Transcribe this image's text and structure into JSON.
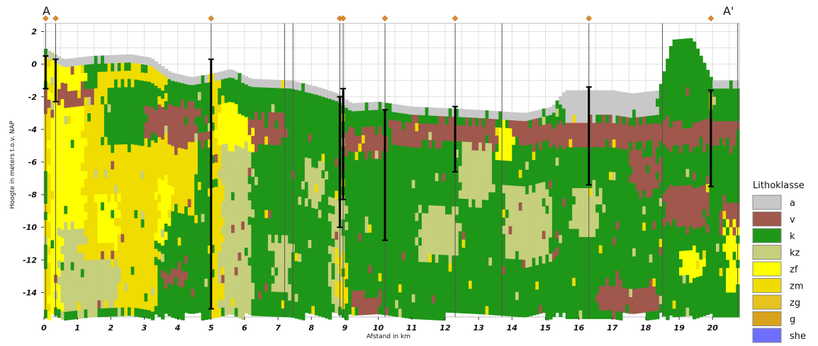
{
  "chart_data": {
    "type": "heatmap",
    "title": "",
    "section_labels": [
      "A",
      "A'"
    ],
    "xlabel": "Afstand in km",
    "ylabel": "Hoogte in meters t.o.v. NAP",
    "xlim": [
      0,
      20.8
    ],
    "ylim": [
      -15.5,
      2.5
    ],
    "x_ticks": [
      0,
      1,
      2,
      3,
      4,
      5,
      6,
      7,
      8,
      9,
      10,
      11,
      12,
      13,
      14,
      15,
      16,
      17,
      18,
      19,
      20
    ],
    "y_ticks": [
      2,
      0,
      -2,
      -4,
      -6,
      -8,
      -10,
      -12,
      -14
    ],
    "grid": true,
    "legend_title": "Lithoklasse",
    "legend_position": "right",
    "classes": [
      {
        "code": "a",
        "color": "#c8c8c8"
      },
      {
        "code": "v",
        "color": "#a0574c"
      },
      {
        "code": "k",
        "color": "#1e9618"
      },
      {
        "code": "kz",
        "color": "#c6cf7c"
      },
      {
        "code": "zf",
        "color": "#ffff00"
      },
      {
        "code": "zm",
        "color": "#f0dc00"
      },
      {
        "code": "zg",
        "color": "#e6c31e"
      },
      {
        "code": "g",
        "color": "#d9a21c"
      },
      {
        "code": "she",
        "color": "#6f6fff"
      }
    ],
    "cell_width_km": 0.1,
    "cell_height_m": 0.5,
    "surface": [
      {
        "x": 0.0,
        "z": 1.0
      },
      {
        "x": 0.6,
        "z": 0.3
      },
      {
        "x": 1.4,
        "z": 0.5
      },
      {
        "x": 2.6,
        "z": 0.6
      },
      {
        "x": 3.2,
        "z": 0.4
      },
      {
        "x": 3.8,
        "z": -0.5
      },
      {
        "x": 4.4,
        "z": -0.8
      },
      {
        "x": 5.0,
        "z": -0.6
      },
      {
        "x": 5.6,
        "z": -0.3
      },
      {
        "x": 6.2,
        "z": -0.9
      },
      {
        "x": 7.4,
        "z": -1.0
      },
      {
        "x": 8.2,
        "z": -1.4
      },
      {
        "x": 8.8,
        "z": -1.8
      },
      {
        "x": 9.2,
        "z": -2.4
      },
      {
        "x": 10.0,
        "z": -2.3
      },
      {
        "x": 11.0,
        "z": -2.6
      },
      {
        "x": 13.0,
        "z": -2.8
      },
      {
        "x": 14.4,
        "z": -3.0
      },
      {
        "x": 15.2,
        "z": -2.6
      },
      {
        "x": 15.6,
        "z": -1.6
      },
      {
        "x": 17.0,
        "z": -1.6
      },
      {
        "x": 17.6,
        "z": -1.8
      },
      {
        "x": 18.4,
        "z": -1.6
      },
      {
        "x": 18.8,
        "z": 1.5
      },
      {
        "x": 19.4,
        "z": 1.6
      },
      {
        "x": 20.0,
        "z": -1.0
      },
      {
        "x": 20.8,
        "z": -1.0
      }
    ],
    "base_depth": -15.2,
    "zones": [
      {
        "x0": 0.0,
        "x1": 0.2,
        "z0": 0.5,
        "z1": -15.2,
        "class": "zm"
      },
      {
        "x0": 0.0,
        "x1": 0.3,
        "z0": -1.5,
        "z1": -3.5,
        "class": "v"
      },
      {
        "x0": 0.2,
        "x1": 1.2,
        "z0": 0.2,
        "z1": -15.2,
        "class": "zf"
      },
      {
        "x0": 0.4,
        "x1": 1.6,
        "z0": -1.5,
        "z1": -2.5,
        "class": "v"
      },
      {
        "x0": 0.5,
        "x1": 2.2,
        "z0": -10.0,
        "z1": -15.2,
        "class": "kz"
      },
      {
        "x0": 1.2,
        "x1": 4.6,
        "z0": -2.5,
        "z1": -12.0,
        "class": "zm"
      },
      {
        "x0": 1.6,
        "x1": 3.6,
        "z0": -0.3,
        "z1": -2.5,
        "class": "zm"
      },
      {
        "x0": 1.8,
        "x1": 3.4,
        "z0": -1.2,
        "z1": -5.0,
        "class": "k"
      },
      {
        "x0": 3.0,
        "x1": 4.6,
        "z0": -2.5,
        "z1": -4.5,
        "class": "v"
      },
      {
        "x0": 3.8,
        "x1": 5.0,
        "z0": -0.5,
        "z1": -2.5,
        "class": "k"
      },
      {
        "x0": 3.8,
        "x1": 5.0,
        "z0": -4.0,
        "z1": -5.0,
        "class": "v"
      },
      {
        "x0": 2.2,
        "x1": 3.4,
        "z0": -12.0,
        "z1": -15.2,
        "class": "zm"
      },
      {
        "x0": 3.4,
        "x1": 5.0,
        "z0": -9.0,
        "z1": -15.2,
        "class": "k"
      },
      {
        "x0": 3.4,
        "x1": 3.8,
        "z0": -7.0,
        "z1": -11.0,
        "class": "zf"
      },
      {
        "x0": 1.6,
        "x1": 2.2,
        "z0": -8.0,
        "z1": -11.0,
        "class": "zf"
      },
      {
        "x0": 3.6,
        "x1": 4.2,
        "z0": -12.5,
        "z1": -13.5,
        "class": "v"
      },
      {
        "x0": 5.0,
        "x1": 5.3,
        "z0": -0.5,
        "z1": -15.2,
        "class": "zm"
      },
      {
        "x0": 5.3,
        "x1": 5.9,
        "z0": -0.3,
        "z1": -2.5,
        "class": "k"
      },
      {
        "x0": 5.2,
        "x1": 6.2,
        "z0": -2.5,
        "z1": -5.0,
        "class": "zf"
      },
      {
        "x0": 5.3,
        "x1": 6.2,
        "z0": -5.0,
        "z1": -15.2,
        "class": "kz"
      },
      {
        "x0": 5.9,
        "x1": 7.4,
        "z0": -0.9,
        "z1": -3.0,
        "class": "k"
      },
      {
        "x0": 6.2,
        "x1": 7.2,
        "z0": -3.0,
        "z1": -5.0,
        "class": "v"
      },
      {
        "x0": 6.2,
        "x1": 7.4,
        "z0": -5.0,
        "z1": -15.2,
        "class": "k"
      },
      {
        "x0": 6.8,
        "x1": 7.4,
        "z0": -10.5,
        "z1": -14.0,
        "class": "kz"
      },
      {
        "x0": 7.4,
        "x1": 8.8,
        "z0": -1.0,
        "z1": -4.5,
        "class": "k"
      },
      {
        "x0": 7.4,
        "x1": 8.8,
        "z0": -4.5,
        "z1": -15.2,
        "class": "k"
      },
      {
        "x0": 7.8,
        "x1": 8.4,
        "z0": -6.0,
        "z1": -8.5,
        "class": "kz"
      },
      {
        "x0": 8.6,
        "x1": 9.0,
        "z0": -8.0,
        "z1": -15.2,
        "class": "kz"
      },
      {
        "x0": 8.8,
        "x1": 9.2,
        "z0": -11.5,
        "z1": -15.2,
        "class": "zm"
      },
      {
        "x0": 9.0,
        "x1": 10.2,
        "z0": -2.4,
        "z1": -4.0,
        "class": "k"
      },
      {
        "x0": 9.0,
        "x1": 10.2,
        "z0": -4.0,
        "z1": -5.5,
        "class": "v"
      },
      {
        "x0": 9.0,
        "x1": 10.4,
        "z0": -5.5,
        "z1": -15.2,
        "class": "k"
      },
      {
        "x0": 9.2,
        "x1": 10.0,
        "z0": -14.0,
        "z1": -15.2,
        "class": "v"
      },
      {
        "x0": 10.2,
        "x1": 11.8,
        "z0": -2.4,
        "z1": -3.5,
        "class": "k"
      },
      {
        "x0": 10.4,
        "x1": 12.4,
        "z0": -3.5,
        "z1": -5.0,
        "class": "v"
      },
      {
        "x0": 10.4,
        "x1": 12.4,
        "z0": -5.0,
        "z1": -15.2,
        "class": "k"
      },
      {
        "x0": 11.2,
        "x1": 12.4,
        "z0": -9.0,
        "z1": -12.0,
        "class": "kz"
      },
      {
        "x0": 11.8,
        "x1": 12.4,
        "z0": -2.6,
        "z1": -3.5,
        "class": "k"
      },
      {
        "x0": 12.4,
        "x1": 14.4,
        "z0": -2.8,
        "z1": -3.5,
        "class": "k"
      },
      {
        "x0": 12.4,
        "x1": 15.2,
        "z0": -3.5,
        "z1": -5.0,
        "class": "v"
      },
      {
        "x0": 12.4,
        "x1": 13.4,
        "z0": -5.0,
        "z1": -8.5,
        "class": "kz"
      },
      {
        "x0": 13.4,
        "x1": 15.2,
        "z0": -5.0,
        "z1": -7.5,
        "class": "k"
      },
      {
        "x0": 13.6,
        "x1": 14.0,
        "z0": -3.5,
        "z1": -6.0,
        "class": "zf"
      },
      {
        "x0": 12.4,
        "x1": 15.2,
        "z0": -8.5,
        "z1": -15.2,
        "class": "k"
      },
      {
        "x0": 13.8,
        "x1": 15.2,
        "z0": -7.5,
        "z1": -12.0,
        "class": "kz"
      },
      {
        "x0": 15.2,
        "x1": 15.6,
        "z0": -2.6,
        "z1": -3.5,
        "class": "k"
      },
      {
        "x0": 15.6,
        "x1": 16.4,
        "z0": -1.6,
        "z1": -4.5,
        "class": "a"
      },
      {
        "x0": 16.4,
        "x1": 18.4,
        "z0": -1.6,
        "z1": -3.2,
        "class": "a"
      },
      {
        "x0": 15.2,
        "x1": 18.4,
        "z0": -3.5,
        "z1": -5.0,
        "class": "v"
      },
      {
        "x0": 15.2,
        "x1": 18.4,
        "z0": -5.0,
        "z1": -15.2,
        "class": "k"
      },
      {
        "x0": 15.8,
        "x1": 16.6,
        "z0": -7.5,
        "z1": -10.5,
        "class": "kz"
      },
      {
        "x0": 17.6,
        "x1": 18.4,
        "z0": -5.5,
        "z1": -8.0,
        "class": "v"
      },
      {
        "x0": 16.6,
        "x1": 18.4,
        "z0": -13.5,
        "z1": -15.2,
        "class": "v"
      },
      {
        "x0": 18.4,
        "x1": 20.0,
        "z0": 1.5,
        "z1": -3.5,
        "class": "k"
      },
      {
        "x0": 18.4,
        "x1": 20.8,
        "z0": -3.5,
        "z1": -5.0,
        "class": "v"
      },
      {
        "x0": 18.4,
        "x1": 20.8,
        "z0": -5.0,
        "z1": -7.5,
        "class": "k"
      },
      {
        "x0": 18.6,
        "x1": 19.8,
        "z0": -7.5,
        "z1": -10.0,
        "class": "v"
      },
      {
        "x0": 18.4,
        "x1": 20.8,
        "z0": -10.0,
        "z1": -15.2,
        "class": "k"
      },
      {
        "x0": 19.0,
        "x1": 19.8,
        "z0": -11.5,
        "z1": -13.0,
        "class": "zf"
      },
      {
        "x0": 20.4,
        "x1": 20.8,
        "z0": -10.0,
        "z1": -14.0,
        "class": "zf"
      },
      {
        "x0": 20.0,
        "x1": 20.8,
        "z0": -1.0,
        "z1": -2.5,
        "class": "k"
      },
      {
        "x0": 20.2,
        "x1": 20.8,
        "z0": -8.5,
        "z1": -10.0,
        "class": "v"
      }
    ],
    "boreholes": [
      {
        "x": 0.05,
        "top": 0.5,
        "bottom": -1.5
      },
      {
        "x": 0.35,
        "top": 0.3,
        "bottom": -2.3
      },
      {
        "x": 5.0,
        "top": 0.3,
        "bottom": -15.0
      },
      {
        "x": 8.85,
        "top": -2.0,
        "bottom": -10.0
      },
      {
        "x": 8.95,
        "top": -1.5,
        "bottom": -8.3
      },
      {
        "x": 10.2,
        "top": -2.8,
        "bottom": -10.8
      },
      {
        "x": 12.3,
        "top": -2.6,
        "bottom": -6.6
      },
      {
        "x": 16.3,
        "top": -1.4,
        "bottom": -7.4
      },
      {
        "x": 19.95,
        "top": -1.6,
        "bottom": -7.5
      }
    ],
    "bend_lines": [
      0.05,
      0.35,
      5.0,
      7.2,
      7.45,
      8.85,
      8.95,
      10.2,
      12.3,
      13.7,
      16.3,
      18.5,
      20.75
    ],
    "markers": [
      0.05,
      0.35,
      5.0,
      8.85,
      8.95,
      10.2,
      12.3,
      16.3,
      19.95
    ]
  }
}
